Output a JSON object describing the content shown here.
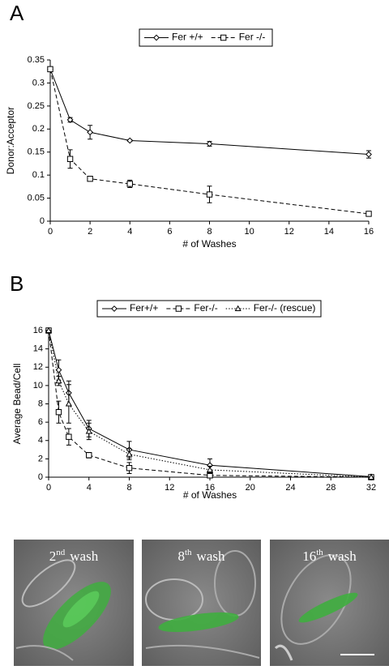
{
  "chart_data": [
    {
      "type": "line",
      "panel_label": "A",
      "ylabel": "Donor:Acceptor",
      "xlabel": "# of Washes",
      "x": [
        0,
        1,
        2,
        4,
        8,
        16
      ],
      "xlim": [
        0,
        16
      ],
      "xticks": [
        0,
        2,
        4,
        6,
        8,
        10,
        12,
        14,
        16
      ],
      "ylim": [
        0,
        0.35
      ],
      "yticks": [
        0,
        0.05,
        0.1,
        0.15,
        0.2,
        0.25,
        0.3,
        0.35
      ],
      "grid": false,
      "legend": "top",
      "series": [
        {
          "name": "Fer +/+",
          "color": "#000000",
          "dash": "solid",
          "marker": "diamond",
          "values": [
            0.33,
            0.22,
            0.193,
            0.175,
            0.168,
            0.145
          ],
          "errors": [
            0,
            0.005,
            0.015,
            0.002,
            0.005,
            0.008
          ]
        },
        {
          "name": "Fer -/-",
          "color": "#000000",
          "dash": "dashed",
          "marker": "square",
          "values": [
            0.33,
            0.135,
            0.092,
            0.081,
            0.058,
            0.016
          ],
          "errors": [
            0,
            0.02,
            0.004,
            0.008,
            0.018,
            0.003
          ]
        }
      ]
    },
    {
      "type": "line",
      "panel_label": "B",
      "ylabel": "Average Bead/Cell",
      "xlabel": "# of Washes",
      "x": [
        0,
        1,
        2,
        4,
        8,
        16,
        32
      ],
      "xlim": [
        0,
        32
      ],
      "xticks": [
        0,
        4,
        8,
        12,
        16,
        20,
        24,
        28,
        32
      ],
      "ylim": [
        0,
        16
      ],
      "yticks": [
        0,
        2,
        4,
        6,
        8,
        10,
        12,
        14,
        16
      ],
      "grid": false,
      "legend": "top",
      "series": [
        {
          "name": "Fer+/+",
          "color": "#000000",
          "dash": "solid",
          "marker": "diamond",
          "values": [
            16,
            11.7,
            9.2,
            5.3,
            3.0,
            1.3,
            0.05
          ],
          "errors": [
            0,
            1.1,
            1.3,
            0.9,
            0.9,
            0.7,
            0
          ]
        },
        {
          "name": "Fer-/-",
          "color": "#000000",
          "dash": "dashed",
          "marker": "square",
          "values": [
            16,
            7.1,
            4.4,
            2.4,
            1.0,
            0.2,
            0
          ],
          "errors": [
            0,
            1.2,
            0.9,
            0.3,
            0.6,
            0.1,
            0
          ]
        },
        {
          "name": "Fer-/- (rescue)",
          "color": "#000000",
          "dash": "dotted",
          "marker": "triangle",
          "values": [
            16,
            10.5,
            8.0,
            5.0,
            2.5,
            0.8,
            0
          ],
          "errors": [
            0,
            0.5,
            2.1,
            0.9,
            0.6,
            0.4,
            0
          ]
        }
      ]
    }
  ],
  "images": [
    {
      "number": "2",
      "suffix": "nd",
      "text": "wash"
    },
    {
      "number": "8",
      "suffix": "th",
      "text": "wash"
    },
    {
      "number": "16",
      "suffix": "th",
      "text": "wash"
    }
  ]
}
